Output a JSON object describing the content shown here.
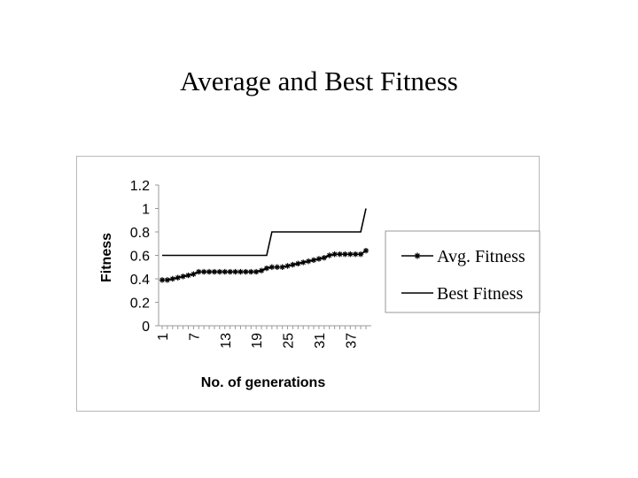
{
  "page": {
    "title": "Average and Best Fitness"
  },
  "chart_data": {
    "type": "line",
    "title": "Average and Best Fitness",
    "xlabel": "No. of generations",
    "ylabel": "Fitness",
    "ylim": [
      0,
      1.2
    ],
    "yticks": [
      "0",
      "0.2",
      "0.4",
      "0.6",
      "0.8",
      "1",
      "1.2"
    ],
    "xticks": [
      "1",
      "7",
      "13",
      "19",
      "25",
      "31",
      "37"
    ],
    "x": [
      1,
      2,
      3,
      4,
      5,
      6,
      7,
      8,
      9,
      10,
      11,
      12,
      13,
      14,
      15,
      16,
      17,
      18,
      19,
      20,
      21,
      22,
      23,
      24,
      25,
      26,
      27,
      28,
      29,
      30,
      31,
      32,
      33,
      34,
      35,
      36,
      37,
      38,
      39,
      40
    ],
    "series": [
      {
        "name": "Avg. Fitness",
        "marker": "star",
        "color": "#000000",
        "values": [
          0.39,
          0.39,
          0.4,
          0.41,
          0.42,
          0.43,
          0.44,
          0.46,
          0.46,
          0.46,
          0.46,
          0.46,
          0.46,
          0.46,
          0.46,
          0.46,
          0.46,
          0.46,
          0.46,
          0.47,
          0.49,
          0.5,
          0.5,
          0.5,
          0.51,
          0.52,
          0.53,
          0.54,
          0.55,
          0.56,
          0.57,
          0.58,
          0.6,
          0.61,
          0.61,
          0.61,
          0.61,
          0.61,
          0.61,
          0.64
        ]
      },
      {
        "name": "Best Fitness",
        "marker": "none",
        "color": "#000000",
        "values": [
          0.6,
          0.6,
          0.6,
          0.6,
          0.6,
          0.6,
          0.6,
          0.6,
          0.6,
          0.6,
          0.6,
          0.6,
          0.6,
          0.6,
          0.6,
          0.6,
          0.6,
          0.6,
          0.6,
          0.6,
          0.6,
          0.8,
          0.8,
          0.8,
          0.8,
          0.8,
          0.8,
          0.8,
          0.8,
          0.8,
          0.8,
          0.8,
          0.8,
          0.8,
          0.8,
          0.8,
          0.8,
          0.8,
          0.8,
          1.0
        ]
      }
    ],
    "legend": {
      "position": "right"
    },
    "grid": false
  }
}
